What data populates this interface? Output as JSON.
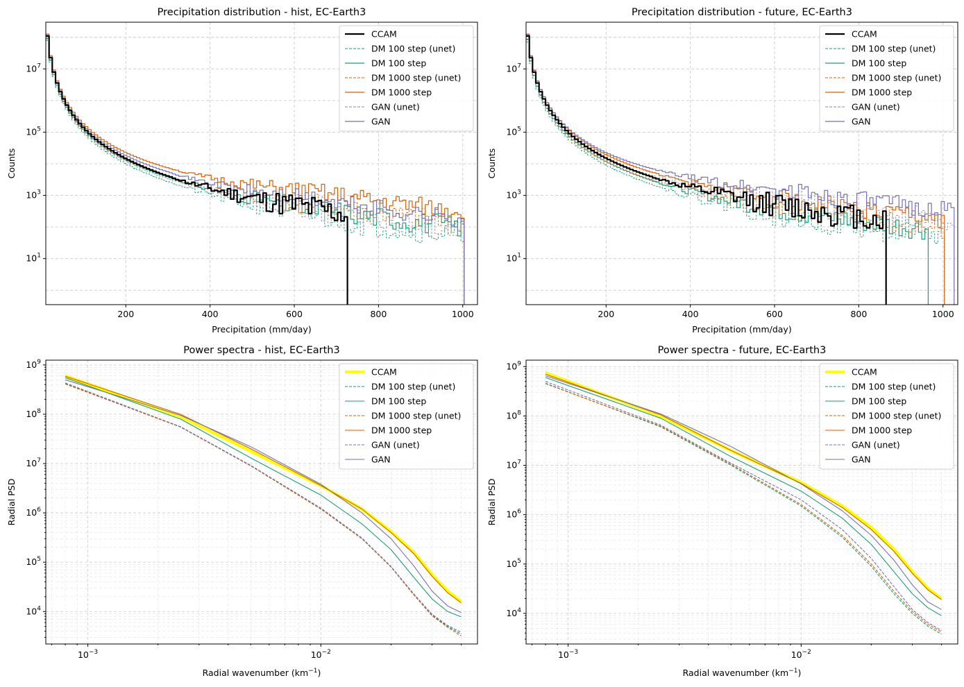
{
  "colors": {
    "ccam_hist": "#000000",
    "ccam_spec": "#ffff00",
    "dm100": "#1b9e77",
    "dm1000": "#d95f02",
    "gan": "#7570b3",
    "gan_unet_hist": "#8c8c9a",
    "grid": "#cccccc"
  },
  "legend_labels": [
    "CCAM",
    "DM 100 step (unet)",
    "DM 100 step",
    "DM 1000 step (unet)",
    "DM 1000 step",
    "GAN (unet)",
    "GAN"
  ],
  "chart_data": [
    {
      "id": "hist_hist",
      "type": "line",
      "subtype": "step-histogram",
      "title": "Precipitation distribution - hist, EC-Earth3",
      "xlabel": "Precipitation (mm/day)",
      "ylabel": "Counts",
      "xscale": "linear",
      "yscale": "log",
      "xlim": [
        10,
        1035
      ],
      "ylim": [
        0.35,
        300000000.0
      ],
      "xticks": [
        200,
        400,
        600,
        800,
        1000
      ],
      "xtick_labels": [
        "200",
        "400",
        "600",
        "800",
        "1000"
      ],
      "yticks": [
        10,
        1000,
        100000,
        10000000
      ],
      "ytick_labels": [
        "10^1",
        "10^3",
        "10^5",
        "10^7"
      ],
      "grid": true,
      "legend_position": "upper right",
      "series": [
        {
          "name": "CCAM",
          "color_key": "ccam_hist",
          "style": "solid",
          "width": 2.2,
          "gen": {
            "seed": 11,
            "tailEnd": 1.2,
            "noise": 0.9,
            "cutoff": 725,
            "zeroProb": 0.45,
            "scale": 1.0
          }
        },
        {
          "name": "DM 100 step (unet)",
          "color_key": "dm100",
          "style": "dashed",
          "width": 0.9,
          "gen": {
            "seed": 21,
            "tailEnd": 1.0,
            "noise": 0.8,
            "cutoff": 1000,
            "zeroProb": 0.4,
            "scale": 0.72
          }
        },
        {
          "name": "DM 100 step",
          "color_key": "dm100",
          "style": "solid",
          "width": 1.2,
          "gen": {
            "seed": 31,
            "tailEnd": 1.5,
            "noise": 0.7,
            "cutoff": 1000,
            "zeroProb": 0.3,
            "scale": 0.85
          }
        },
        {
          "name": "DM 1000 step (unet)",
          "color_key": "dm1000",
          "style": "dashed",
          "width": 0.9,
          "gen": {
            "seed": 41,
            "tailEnd": 2.0,
            "noise": 0.7,
            "cutoff": 1000,
            "zeroProb": 0.35,
            "scale": 0.8
          }
        },
        {
          "name": "DM 1000 step",
          "color_key": "dm1000",
          "style": "solid",
          "width": 1.2,
          "gen": {
            "seed": 51,
            "tailEnd": 3.5,
            "noise": 0.6,
            "cutoff": 1000,
            "zeroProb": 0.25,
            "scale": 1.15
          }
        },
        {
          "name": "GAN (unet)",
          "color_key": "gan_unet_hist",
          "style": "dashed",
          "width": 0.9,
          "gen": {
            "seed": 61,
            "tailEnd": 1.3,
            "noise": 0.7,
            "cutoff": 1000,
            "zeroProb": 0.35,
            "scale": 0.8
          }
        },
        {
          "name": "GAN",
          "color_key": "gan",
          "style": "solid",
          "width": 1.2,
          "gen": {
            "seed": 71,
            "tailEnd": 2.2,
            "noise": 0.6,
            "cutoff": 1000,
            "zeroProb": 0.25,
            "scale": 1.05
          }
        }
      ]
    },
    {
      "id": "hist_future",
      "type": "line",
      "subtype": "step-histogram",
      "title": "Precipitation distribution - future, EC-Earth3",
      "xlabel": "Precipitation (mm/day)",
      "ylabel": "Counts",
      "xscale": "linear",
      "yscale": "log",
      "xlim": [
        10,
        1035
      ],
      "ylim": [
        0.35,
        300000000.0
      ],
      "xticks": [
        200,
        400,
        600,
        800,
        1000
      ],
      "xtick_labels": [
        "200",
        "400",
        "600",
        "800",
        "1000"
      ],
      "yticks": [
        10,
        1000,
        100000,
        10000000
      ],
      "ytick_labels": [
        "10^1",
        "10^3",
        "10^5",
        "10^7"
      ],
      "grid": true,
      "legend_position": "upper right",
      "series": [
        {
          "name": "CCAM",
          "color_key": "ccam_hist",
          "style": "solid",
          "width": 2.2,
          "gen": {
            "seed": 12,
            "tailEnd": 1.3,
            "noise": 0.8,
            "cutoff": 860,
            "zeroProb": 0.4,
            "scale": 1.0
          }
        },
        {
          "name": "DM 100 step (unet)",
          "color_key": "dm100",
          "style": "dashed",
          "width": 0.9,
          "gen": {
            "seed": 22,
            "tailEnd": 1.0,
            "noise": 0.8,
            "cutoff": 1000,
            "zeroProb": 0.4,
            "scale": 0.65
          }
        },
        {
          "name": "DM 100 step",
          "color_key": "dm100",
          "style": "solid",
          "width": 1.2,
          "gen": {
            "seed": 32,
            "tailEnd": 1.2,
            "noise": 0.7,
            "cutoff": 960,
            "zeroProb": 0.35,
            "scale": 0.8
          }
        },
        {
          "name": "DM 1000 step (unet)",
          "color_key": "dm1000",
          "style": "dashed",
          "width": 0.9,
          "gen": {
            "seed": 42,
            "tailEnd": 1.5,
            "noise": 0.7,
            "cutoff": 1000,
            "zeroProb": 0.35,
            "scale": 0.75
          }
        },
        {
          "name": "DM 1000 step",
          "color_key": "dm1000",
          "style": "solid",
          "width": 1.2,
          "gen": {
            "seed": 52,
            "tailEnd": 2.0,
            "noise": 0.6,
            "cutoff": 1000,
            "zeroProb": 0.3,
            "scale": 1.15
          }
        },
        {
          "name": "GAN (unet)",
          "color_key": "gan_unet_hist",
          "style": "dashed",
          "width": 0.9,
          "gen": {
            "seed": 62,
            "tailEnd": 3.0,
            "noise": 0.7,
            "cutoff": 1020,
            "zeroProb": 0.3,
            "scale": 0.75
          }
        },
        {
          "name": "GAN",
          "color_key": "gan",
          "style": "solid",
          "width": 1.2,
          "gen": {
            "seed": 72,
            "tailEnd": 4.0,
            "noise": 0.6,
            "cutoff": 1020,
            "zeroProb": 0.2,
            "scale": 1.1
          }
        }
      ]
    },
    {
      "id": "psd_hist",
      "type": "line",
      "title": "Power spectra - hist, EC-Earth3",
      "xlabel": "Radial wavenumber (km",
      "xlabel_sup": "−1",
      "xlabel_end": ")",
      "ylabel": "Radial PSD",
      "xscale": "log",
      "yscale": "log",
      "xlim": [
        0.00066,
        0.047
      ],
      "ylim": [
        2200,
        1250000000.0
      ],
      "xticks": [
        0.001,
        0.01
      ],
      "xtick_labels": [
        "10^-3",
        "10^-2"
      ],
      "yticks": [
        10000,
        100000,
        1000000,
        10000000,
        100000000,
        1000000000
      ],
      "ytick_labels": [
        "10^4",
        "10^5",
        "10^6",
        "10^7",
        "10^8",
        "10^9"
      ],
      "grid": true,
      "legend_position": "upper right",
      "series": [
        {
          "name": "CCAM",
          "color_key": "ccam_spec",
          "style": "solid",
          "width": 4.5,
          "x": [
            0.0008,
            0.0025,
            0.005,
            0.01,
            0.015,
            0.02,
            0.025,
            0.03,
            0.035,
            0.04
          ],
          "y": [
            600000000.0,
            90000000.0,
            18000000.0,
            3600000.0,
            1200000.0,
            420000.0,
            160000.0,
            56000.0,
            26000.0,
            16000.0
          ]
        },
        {
          "name": "DM 100 step (unet)",
          "color_key": "dm100",
          "style": "dashed",
          "width": 1.1,
          "x": [
            0.0008,
            0.0025,
            0.005,
            0.01,
            0.015,
            0.02,
            0.025,
            0.03,
            0.035,
            0.04
          ],
          "y": [
            420000000.0,
            55000000.0,
            9000000.0,
            1200000.0,
            300000.0,
            80000.0,
            22000.0,
            8500.0,
            5000.0,
            3500.0
          ]
        },
        {
          "name": "DM 100 step",
          "color_key": "dm100",
          "style": "solid",
          "width": 1.1,
          "x": [
            0.0008,
            0.0025,
            0.005,
            0.01,
            0.015,
            0.02,
            0.025,
            0.03,
            0.035,
            0.04
          ],
          "y": [
            550000000.0,
            80000000.0,
            13000000.0,
            2300000.0,
            600000.0,
            180000.0,
            50000.0,
            18000.0,
            10000.0,
            7800.0
          ]
        },
        {
          "name": "DM 1000 step (unet)",
          "color_key": "dm1000",
          "style": "dashed",
          "width": 1.1,
          "x": [
            0.0008,
            0.0025,
            0.005,
            0.01,
            0.015,
            0.02,
            0.025,
            0.03,
            0.035,
            0.04
          ],
          "y": [
            410000000.0,
            55000000.0,
            9000000.0,
            1200000.0,
            300000.0,
            80000.0,
            22000.0,
            8200.0,
            4800.0,
            3200.0
          ]
        },
        {
          "name": "DM 1000 step",
          "color_key": "dm1000",
          "style": "solid",
          "width": 1.1,
          "x": [
            0.0008,
            0.0025,
            0.005,
            0.01,
            0.015,
            0.02,
            0.025,
            0.03,
            0.035,
            0.04
          ],
          "y": [
            590000000.0,
            100000000.0,
            20000000.0,
            3600000.0,
            1200000.0,
            400000.0,
            150000.0,
            52000.0,
            24000.0,
            15000.0
          ]
        },
        {
          "name": "GAN (unet)",
          "color_key": "gan",
          "style": "dashed",
          "width": 1.1,
          "x": [
            0.0008,
            0.0025,
            0.005,
            0.01,
            0.015,
            0.02,
            0.025,
            0.03,
            0.035,
            0.04
          ],
          "y": [
            430000000.0,
            56000000.0,
            9200000.0,
            1250000.0,
            310000.0,
            82000.0,
            23000.0,
            8800.0,
            5200.0,
            3800.0
          ]
        },
        {
          "name": "GAN",
          "color_key": "gan",
          "style": "solid",
          "width": 1.1,
          "x": [
            0.0008,
            0.0025,
            0.005,
            0.01,
            0.015,
            0.02,
            0.025,
            0.03,
            0.035,
            0.04
          ],
          "y": [
            500000000.0,
            95000000.0,
            22000000.0,
            3800000.0,
            1000000.0,
            300000.0,
            85000.0,
            26000.0,
            13000.0,
            9500.0
          ]
        }
      ]
    },
    {
      "id": "psd_future",
      "type": "line",
      "title": "Power spectra - future, EC-Earth3",
      "xlabel": "Radial wavenumber (km",
      "xlabel_sup": "−1",
      "xlabel_end": ")",
      "ylabel": "Radial PSD",
      "xscale": "log",
      "yscale": "log",
      "xlim": [
        0.00066,
        0.047
      ],
      "ylim": [
        2400,
        1350000000.0
      ],
      "xticks": [
        0.001,
        0.01
      ],
      "xtick_labels": [
        "10^-3",
        "10^-2"
      ],
      "yticks": [
        10000,
        100000,
        1000000,
        10000000,
        100000000,
        1000000000
      ],
      "ytick_labels": [
        "10^4",
        "10^5",
        "10^6",
        "10^7",
        "10^8",
        "10^9"
      ],
      "grid": true,
      "legend_position": "upper right",
      "series": [
        {
          "name": "CCAM",
          "color_key": "ccam_spec",
          "style": "solid",
          "width": 4.5,
          "x": [
            0.0008,
            0.0025,
            0.005,
            0.01,
            0.015,
            0.02,
            0.025,
            0.03,
            0.035,
            0.04
          ],
          "y": [
            750000000.0,
            100000000.0,
            20000000.0,
            4500000.0,
            1500000.0,
            550000.0,
            200000.0,
            70000.0,
            32000.0,
            20000.0
          ]
        },
        {
          "name": "DM 100 step (unet)",
          "color_key": "dm100",
          "style": "dashed",
          "width": 1.1,
          "x": [
            0.0008,
            0.0025,
            0.005,
            0.01,
            0.015,
            0.02,
            0.025,
            0.03,
            0.035,
            0.04
          ],
          "y": [
            460000000.0,
            60000000.0,
            10000000.0,
            1500000.0,
            350000.0,
            90000.0,
            25000.0,
            10000.0,
            5500.0,
            3800.0
          ]
        },
        {
          "name": "DM 100 step",
          "color_key": "dm100",
          "style": "solid",
          "width": 1.1,
          "x": [
            0.0008,
            0.0025,
            0.005,
            0.01,
            0.015,
            0.02,
            0.025,
            0.03,
            0.035,
            0.04
          ],
          "y": [
            600000000.0,
            90000000.0,
            15000000.0,
            3000000.0,
            850000.0,
            250000.0,
            70000.0,
            25000.0,
            13000.0,
            9000.0
          ]
        },
        {
          "name": "DM 1000 step (unet)",
          "color_key": "dm1000",
          "style": "dashed",
          "width": 1.1,
          "x": [
            0.0008,
            0.0025,
            0.005,
            0.01,
            0.015,
            0.02,
            0.025,
            0.03,
            0.035,
            0.04
          ],
          "y": [
            450000000.0,
            62000000.0,
            10500000.0,
            1600000.0,
            380000.0,
            100000.0,
            28000.0,
            11000.0,
            6000.0,
            4200.0
          ]
        },
        {
          "name": "DM 1000 step",
          "color_key": "dm1000",
          "style": "solid",
          "width": 1.1,
          "x": [
            0.0008,
            0.0025,
            0.005,
            0.01,
            0.015,
            0.02,
            0.025,
            0.03,
            0.035,
            0.04
          ],
          "y": [
            700000000.0,
            105000000.0,
            20000000.0,
            4300000.0,
            1400000.0,
            500000.0,
            180000.0,
            65000.0,
            30000.0,
            19000.0
          ]
        },
        {
          "name": "GAN (unet)",
          "color_key": "gan",
          "style": "dashed",
          "width": 1.1,
          "x": [
            0.0008,
            0.0025,
            0.005,
            0.01,
            0.015,
            0.02,
            0.025,
            0.03,
            0.035,
            0.04
          ],
          "y": [
            500000000.0,
            65000000.0,
            11000000.0,
            2000000.0,
            500000.0,
            130000.0,
            35000.0,
            12000.0,
            6500.0,
            4500.0
          ]
        },
        {
          "name": "GAN",
          "color_key": "gan",
          "style": "solid",
          "width": 1.1,
          "x": [
            0.0008,
            0.0025,
            0.005,
            0.01,
            0.015,
            0.02,
            0.025,
            0.03,
            0.035,
            0.04
          ],
          "y": [
            650000000.0,
            110000000.0,
            24000000.0,
            4200000.0,
            1200000.0,
            380000.0,
            120000.0,
            38000.0,
            17000.0,
            12000.0
          ]
        }
      ]
    }
  ]
}
